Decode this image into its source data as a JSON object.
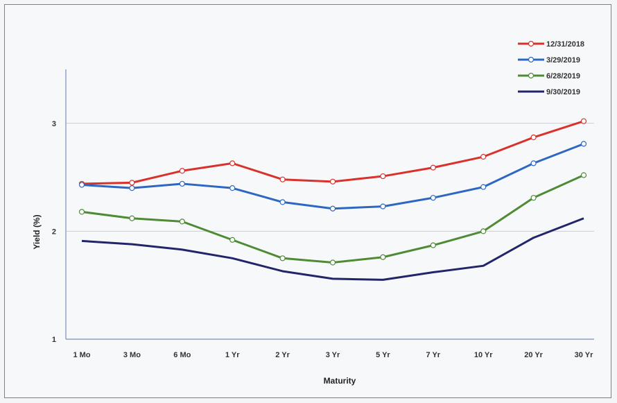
{
  "chart_data": {
    "type": "line",
    "title": "",
    "xlabel": "Maturity",
    "ylabel": "Yield (%)",
    "categories": [
      "1 Mo",
      "3 Mo",
      "6 Mo",
      "1 Yr",
      "2 Yr",
      "3 Yr",
      "5 Yr",
      "7 Yr",
      "10 Yr",
      "20 Yr",
      "30 Yr"
    ],
    "ylim": [
      1,
      3.5
    ],
    "yticks": [
      1,
      2,
      3
    ],
    "grid": true,
    "legend_position": "top-right",
    "series": [
      {
        "name": "12/31/2018",
        "color": "#d9312b",
        "markers": true,
        "values": [
          2.44,
          2.45,
          2.56,
          2.63,
          2.48,
          2.46,
          2.51,
          2.59,
          2.69,
          2.87,
          3.02
        ]
      },
      {
        "name": "3/29/2019",
        "color": "#2e67c2",
        "markers": true,
        "values": [
          2.43,
          2.4,
          2.44,
          2.4,
          2.27,
          2.21,
          2.23,
          2.31,
          2.41,
          2.63,
          2.81
        ]
      },
      {
        "name": "6/28/2019",
        "color": "#4f8a34",
        "markers": true,
        "values": [
          2.18,
          2.12,
          2.09,
          1.92,
          1.75,
          1.71,
          1.76,
          1.87,
          2.0,
          2.31,
          2.52
        ]
      },
      {
        "name": "9/30/2019",
        "color": "#23256b",
        "markers": false,
        "values": [
          1.91,
          1.88,
          1.83,
          1.75,
          1.63,
          1.56,
          1.55,
          1.62,
          1.68,
          1.94,
          2.12
        ]
      }
    ]
  }
}
